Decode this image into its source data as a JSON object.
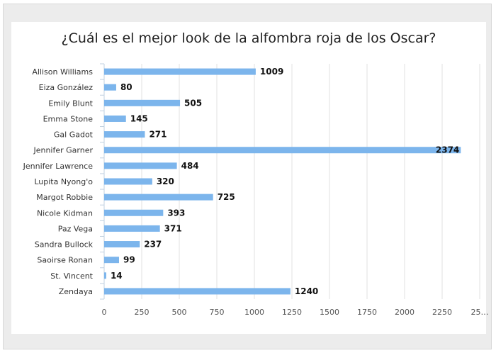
{
  "colors": {
    "bar": "#7cb5ec",
    "grid": "#e0e0e0",
    "axis": "#c0d0e0"
  },
  "chart_data": {
    "type": "bar",
    "orientation": "horizontal",
    "title": "¿Cuál es el mejor look de la alfombra roja de los Oscar?",
    "categories": [
      "Allison Williams",
      "Eiza González",
      "Emily Blunt",
      "Emma Stone",
      "Gal Gadot",
      "Jennifer Garner",
      "Jennifer Lawrence",
      "Lupita Nyong'o",
      "Margot Robbie",
      "Nicole Kidman",
      "Paz Vega",
      "Sandra Bullock",
      "Saoirse Ronan",
      "St. Vincent",
      "Zendaya"
    ],
    "values": [
      1009,
      80,
      505,
      145,
      271,
      2374,
      484,
      320,
      725,
      393,
      371,
      237,
      99,
      14,
      1240
    ],
    "xlim": [
      0,
      2500
    ],
    "xticks": [
      "0",
      "250",
      "500",
      "750",
      "1000",
      "1250",
      "1500",
      "1750",
      "2000",
      "2250",
      "25…"
    ],
    "grid": true,
    "data_labels": true
  }
}
